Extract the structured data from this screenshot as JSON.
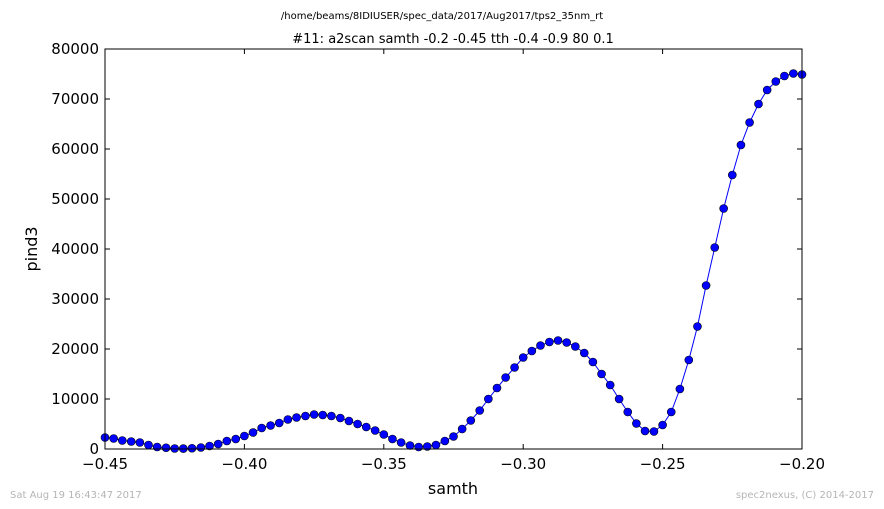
{
  "file_path": "/home/beams/8IDIUSER/spec_data/2017/Aug2017/tps2_35nm_rt",
  "footer": {
    "timestamp": "Sat Aug 19 16:43:47 2017",
    "credit": "spec2nexus, (C) 2014-2017"
  },
  "colors": {
    "series": "#0000ff",
    "axes": "#000000",
    "footer": "#b5b5b5"
  },
  "chart_data": {
    "type": "line",
    "title": "#11: a2scan  samth -0.2 -0.45  tth -0.4 -0.9  80 0.1",
    "xlabel": "samth",
    "ylabel": "pind3",
    "xlim": [
      -0.45,
      -0.2
    ],
    "ylim": [
      0,
      80000
    ],
    "xticks": [
      -0.45,
      -0.4,
      -0.35,
      -0.3,
      -0.25,
      -0.2
    ],
    "xtick_labels": [
      "−0.45",
      "−0.40",
      "−0.35",
      "−0.30",
      "−0.25",
      "−0.20"
    ],
    "yticks": [
      0,
      10000,
      20000,
      30000,
      40000,
      50000,
      60000,
      70000,
      80000
    ],
    "ytick_labels": [
      "0",
      "10000",
      "20000",
      "30000",
      "40000",
      "50000",
      "60000",
      "70000",
      "80000"
    ],
    "marker": "circle",
    "grid": false,
    "x": [
      -0.45,
      -0.4469,
      -0.4438,
      -0.4406,
      -0.4375,
      -0.4344,
      -0.4313,
      -0.4281,
      -0.425,
      -0.4219,
      -0.4188,
      -0.4156,
      -0.4125,
      -0.4094,
      -0.4063,
      -0.4031,
      -0.4,
      -0.3969,
      -0.3938,
      -0.3906,
      -0.3875,
      -0.3844,
      -0.3813,
      -0.3781,
      -0.375,
      -0.3719,
      -0.3688,
      -0.3656,
      -0.3625,
      -0.3594,
      -0.3563,
      -0.3531,
      -0.35,
      -0.3469,
      -0.3438,
      -0.3406,
      -0.3375,
      -0.3344,
      -0.3313,
      -0.3281,
      -0.325,
      -0.3219,
      -0.3188,
      -0.3156,
      -0.3125,
      -0.3094,
      -0.3063,
      -0.3031,
      -0.3,
      -0.2969,
      -0.2938,
      -0.2906,
      -0.2875,
      -0.2844,
      -0.2813,
      -0.2781,
      -0.275,
      -0.2719,
      -0.2688,
      -0.2656,
      -0.2625,
      -0.2594,
      -0.2563,
      -0.2531,
      -0.25,
      -0.2469,
      -0.2438,
      -0.2406,
      -0.2375,
      -0.2344,
      -0.2313,
      -0.2281,
      -0.225,
      -0.2219,
      -0.2188,
      -0.2156,
      -0.2125,
      -0.2094,
      -0.2063,
      -0.2031,
      -0.2
    ],
    "y": [
      2300,
      2100,
      1700,
      1500,
      1300,
      800,
      400,
      250,
      100,
      80,
      150,
      300,
      600,
      1000,
      1600,
      2000,
      2600,
      3300,
      4200,
      4700,
      5200,
      5900,
      6300,
      6600,
      6900,
      6800,
      6600,
      6200,
      5600,
      5000,
      4400,
      3700,
      2900,
      2000,
      1300,
      700,
      400,
      500,
      800,
      1600,
      2500,
      4000,
      5700,
      7700,
      10000,
      12200,
      14300,
      16300,
      18300,
      19600,
      20700,
      21400,
      21700,
      21300,
      20500,
      19200,
      17400,
      15000,
      12800,
      10000,
      7400,
      5100,
      3600,
      3500,
      4800,
      7400,
      12000,
      17800,
      24500,
      32700,
      40300,
      48100,
      54800,
      60800,
      65300,
      69000,
      71800,
      73500,
      74600,
      75100,
      74900
    ]
  }
}
